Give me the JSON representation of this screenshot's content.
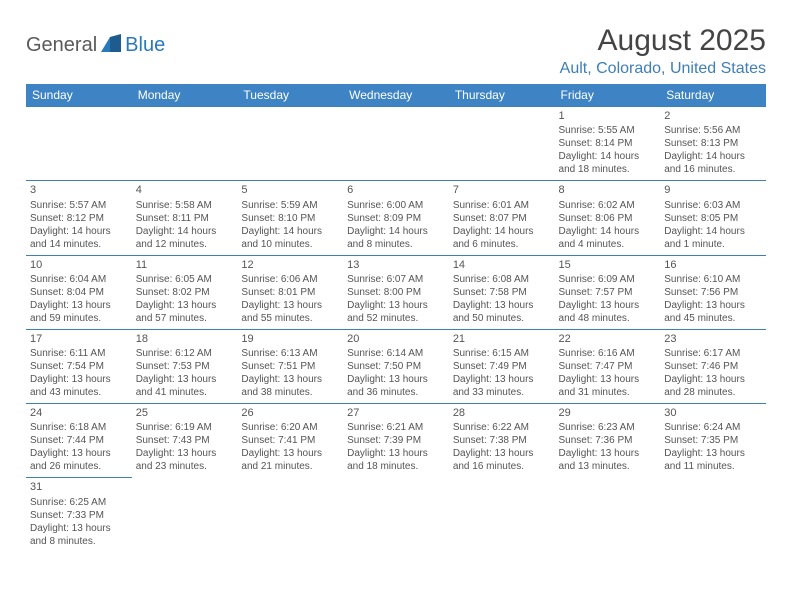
{
  "logo": {
    "general": "General",
    "blue": "Blue"
  },
  "title": "August 2025",
  "location": "Ault, Colorado, United States",
  "colors": {
    "headerBg": "#3e84c4",
    "headerText": "#ffffff",
    "border": "#3e7fb5",
    "accent": "#2a7ab9",
    "text": "#555555"
  },
  "weekdays": [
    "Sunday",
    "Monday",
    "Tuesday",
    "Wednesday",
    "Thursday",
    "Friday",
    "Saturday"
  ],
  "weeks": [
    [
      null,
      null,
      null,
      null,
      null,
      {
        "day": "1",
        "sunrise": "5:55 AM",
        "sunset": "8:14 PM",
        "daylight1": "14 hours",
        "daylight2": "and 18 minutes."
      },
      {
        "day": "2",
        "sunrise": "5:56 AM",
        "sunset": "8:13 PM",
        "daylight1": "14 hours",
        "daylight2": "and 16 minutes."
      }
    ],
    [
      {
        "day": "3",
        "sunrise": "5:57 AM",
        "sunset": "8:12 PM",
        "daylight1": "14 hours",
        "daylight2": "and 14 minutes."
      },
      {
        "day": "4",
        "sunrise": "5:58 AM",
        "sunset": "8:11 PM",
        "daylight1": "14 hours",
        "daylight2": "and 12 minutes."
      },
      {
        "day": "5",
        "sunrise": "5:59 AM",
        "sunset": "8:10 PM",
        "daylight1": "14 hours",
        "daylight2": "and 10 minutes."
      },
      {
        "day": "6",
        "sunrise": "6:00 AM",
        "sunset": "8:09 PM",
        "daylight1": "14 hours",
        "daylight2": "and 8 minutes."
      },
      {
        "day": "7",
        "sunrise": "6:01 AM",
        "sunset": "8:07 PM",
        "daylight1": "14 hours",
        "daylight2": "and 6 minutes."
      },
      {
        "day": "8",
        "sunrise": "6:02 AM",
        "sunset": "8:06 PM",
        "daylight1": "14 hours",
        "daylight2": "and 4 minutes."
      },
      {
        "day": "9",
        "sunrise": "6:03 AM",
        "sunset": "8:05 PM",
        "daylight1": "14 hours",
        "daylight2": "and 1 minute."
      }
    ],
    [
      {
        "day": "10",
        "sunrise": "6:04 AM",
        "sunset": "8:04 PM",
        "daylight1": "13 hours",
        "daylight2": "and 59 minutes."
      },
      {
        "day": "11",
        "sunrise": "6:05 AM",
        "sunset": "8:02 PM",
        "daylight1": "13 hours",
        "daylight2": "and 57 minutes."
      },
      {
        "day": "12",
        "sunrise": "6:06 AM",
        "sunset": "8:01 PM",
        "daylight1": "13 hours",
        "daylight2": "and 55 minutes."
      },
      {
        "day": "13",
        "sunrise": "6:07 AM",
        "sunset": "8:00 PM",
        "daylight1": "13 hours",
        "daylight2": "and 52 minutes."
      },
      {
        "day": "14",
        "sunrise": "6:08 AM",
        "sunset": "7:58 PM",
        "daylight1": "13 hours",
        "daylight2": "and 50 minutes."
      },
      {
        "day": "15",
        "sunrise": "6:09 AM",
        "sunset": "7:57 PM",
        "daylight1": "13 hours",
        "daylight2": "and 48 minutes."
      },
      {
        "day": "16",
        "sunrise": "6:10 AM",
        "sunset": "7:56 PM",
        "daylight1": "13 hours",
        "daylight2": "and 45 minutes."
      }
    ],
    [
      {
        "day": "17",
        "sunrise": "6:11 AM",
        "sunset": "7:54 PM",
        "daylight1": "13 hours",
        "daylight2": "and 43 minutes."
      },
      {
        "day": "18",
        "sunrise": "6:12 AM",
        "sunset": "7:53 PM",
        "daylight1": "13 hours",
        "daylight2": "and 41 minutes."
      },
      {
        "day": "19",
        "sunrise": "6:13 AM",
        "sunset": "7:51 PM",
        "daylight1": "13 hours",
        "daylight2": "and 38 minutes."
      },
      {
        "day": "20",
        "sunrise": "6:14 AM",
        "sunset": "7:50 PM",
        "daylight1": "13 hours",
        "daylight2": "and 36 minutes."
      },
      {
        "day": "21",
        "sunrise": "6:15 AM",
        "sunset": "7:49 PM",
        "daylight1": "13 hours",
        "daylight2": "and 33 minutes."
      },
      {
        "day": "22",
        "sunrise": "6:16 AM",
        "sunset": "7:47 PM",
        "daylight1": "13 hours",
        "daylight2": "and 31 minutes."
      },
      {
        "day": "23",
        "sunrise": "6:17 AM",
        "sunset": "7:46 PM",
        "daylight1": "13 hours",
        "daylight2": "and 28 minutes."
      }
    ],
    [
      {
        "day": "24",
        "sunrise": "6:18 AM",
        "sunset": "7:44 PM",
        "daylight1": "13 hours",
        "daylight2": "and 26 minutes."
      },
      {
        "day": "25",
        "sunrise": "6:19 AM",
        "sunset": "7:43 PM",
        "daylight1": "13 hours",
        "daylight2": "and 23 minutes."
      },
      {
        "day": "26",
        "sunrise": "6:20 AM",
        "sunset": "7:41 PM",
        "daylight1": "13 hours",
        "daylight2": "and 21 minutes."
      },
      {
        "day": "27",
        "sunrise": "6:21 AM",
        "sunset": "7:39 PM",
        "daylight1": "13 hours",
        "daylight2": "and 18 minutes."
      },
      {
        "day": "28",
        "sunrise": "6:22 AM",
        "sunset": "7:38 PM",
        "daylight1": "13 hours",
        "daylight2": "and 16 minutes."
      },
      {
        "day": "29",
        "sunrise": "6:23 AM",
        "sunset": "7:36 PM",
        "daylight1": "13 hours",
        "daylight2": "and 13 minutes."
      },
      {
        "day": "30",
        "sunrise": "6:24 AM",
        "sunset": "7:35 PM",
        "daylight1": "13 hours",
        "daylight2": "and 11 minutes."
      }
    ],
    [
      {
        "day": "31",
        "sunrise": "6:25 AM",
        "sunset": "7:33 PM",
        "daylight1": "13 hours",
        "daylight2": "and 8 minutes."
      },
      null,
      null,
      null,
      null,
      null,
      null
    ]
  ],
  "labels": {
    "sunrise": "Sunrise: ",
    "sunset": "Sunset: ",
    "daylight": "Daylight: "
  }
}
